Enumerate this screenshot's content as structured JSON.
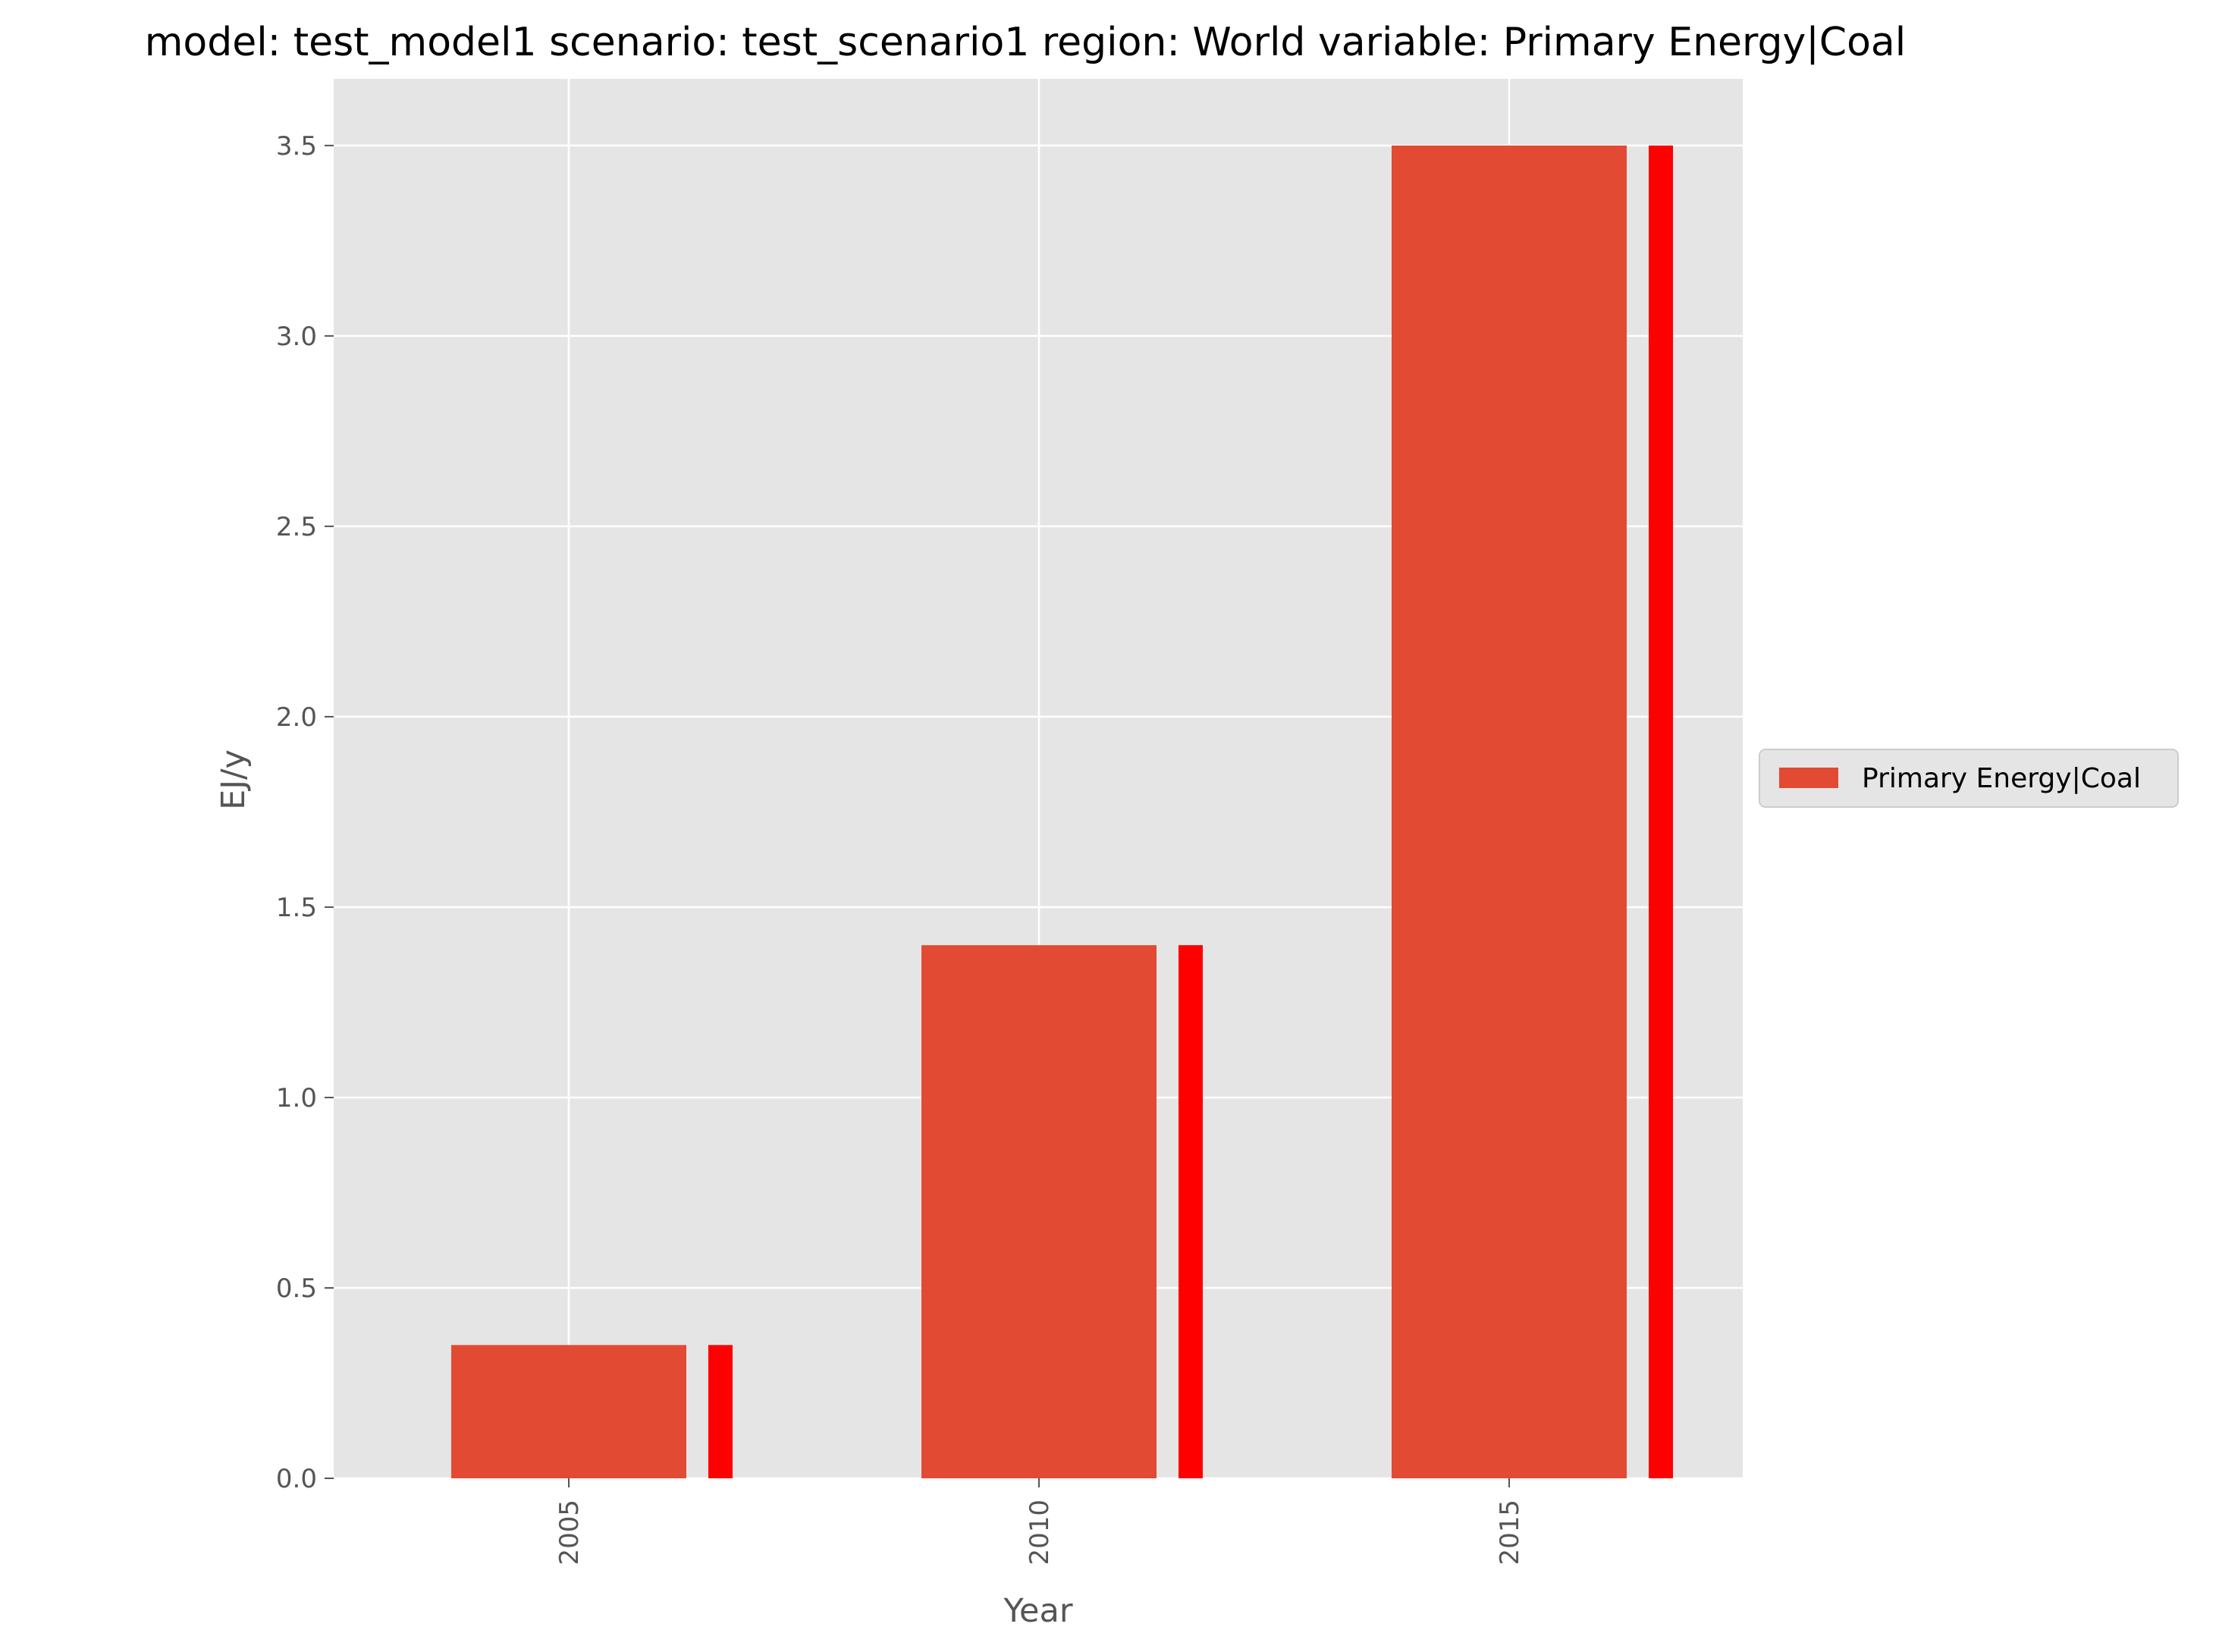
{
  "chart_data": {
    "type": "bar",
    "title": "model: test_model1 scenario: test_scenario1 region: World variable: Primary Energy|Coal",
    "xlabel": "Year",
    "ylabel": "EJ/y",
    "categories": [
      "2005",
      "2010",
      "2015"
    ],
    "series": [
      {
        "name": "Primary Energy|Coal",
        "values": [
          0.35,
          1.4,
          3.5
        ],
        "color": "#E24A33"
      },
      {
        "values": [
          0.35,
          1.4,
          3.5
        ],
        "color": "#FF0000"
      }
    ],
    "ylim": [
      0,
      3.675
    ],
    "yticks": [
      "0.0",
      "0.5",
      "1.0",
      "1.5",
      "2.0",
      "2.5",
      "3.0",
      "3.5"
    ],
    "ytick_values": [
      0,
      0.5,
      1.0,
      1.5,
      2.0,
      2.5,
      3.0,
      3.5
    ],
    "grid": true,
    "legend": "center-right",
    "style": "ggplot",
    "colors": {
      "plot_background": "#E5E5E5",
      "grid": "#FFFFFF",
      "tick_text": "#555555",
      "legend_background": "#E5E5E5",
      "legend_border": "#CCCCCC"
    }
  }
}
